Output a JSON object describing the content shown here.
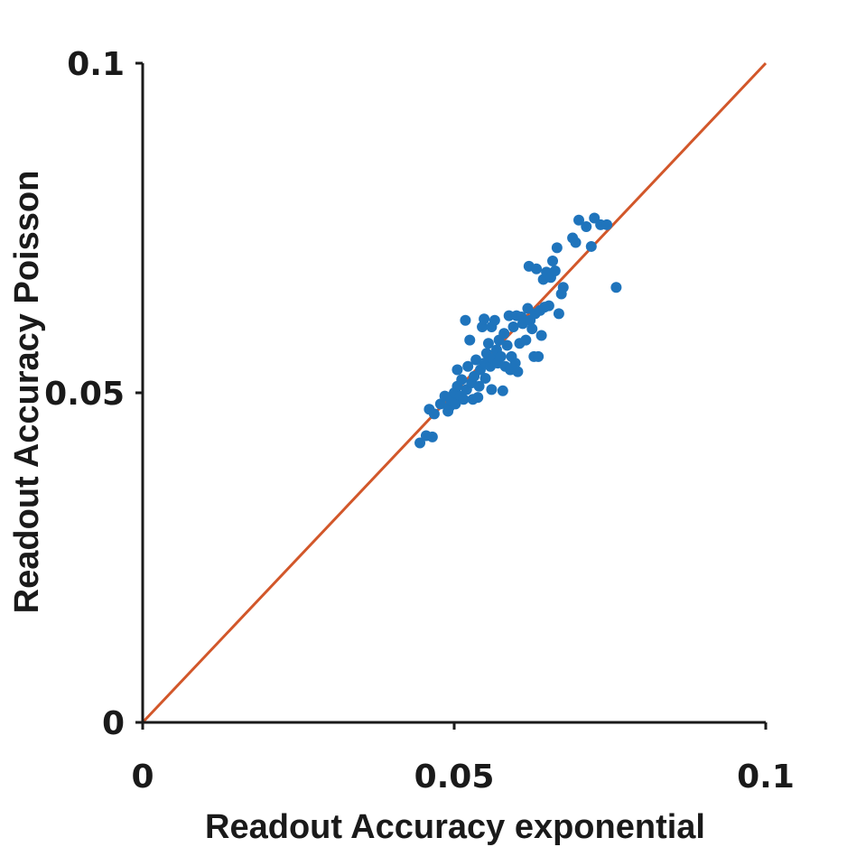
{
  "chart_data": {
    "type": "scatter",
    "xlabel": "Readout Accuracy exponential",
    "ylabel": "Readout Accuracy Poisson",
    "xlim": [
      0,
      0.1
    ],
    "ylim": [
      0,
      0.1
    ],
    "xticks": [
      {
        "value": 0,
        "label": "0"
      },
      {
        "value": 0.05,
        "label": "0.05"
      },
      {
        "value": 0.1,
        "label": "0.1"
      }
    ],
    "yticks": [
      {
        "value": 0,
        "label": "0"
      },
      {
        "value": 0.05,
        "label": "0.05"
      },
      {
        "value": 0.1,
        "label": "0.1"
      }
    ],
    "grid": false,
    "legend": "none",
    "reference_line": {
      "x": [
        0,
        0.1
      ],
      "y": [
        0,
        0.1
      ],
      "color": "#d2572a"
    },
    "point_color": "#1f74bc",
    "points": [
      {
        "x": 0.0445,
        "y": 0.0424
      },
      {
        "x": 0.0455,
        "y": 0.0435
      },
      {
        "x": 0.046,
        "y": 0.0475
      },
      {
        "x": 0.0465,
        "y": 0.0433
      },
      {
        "x": 0.0468,
        "y": 0.0468
      },
      {
        "x": 0.0478,
        "y": 0.0483
      },
      {
        "x": 0.0485,
        "y": 0.0495
      },
      {
        "x": 0.049,
        "y": 0.0472
      },
      {
        "x": 0.0492,
        "y": 0.0478
      },
      {
        "x": 0.0495,
        "y": 0.0488
      },
      {
        "x": 0.05,
        "y": 0.05
      },
      {
        "x": 0.0502,
        "y": 0.0483
      },
      {
        "x": 0.0505,
        "y": 0.051
      },
      {
        "x": 0.0505,
        "y": 0.0535
      },
      {
        "x": 0.051,
        "y": 0.0495
      },
      {
        "x": 0.0512,
        "y": 0.052
      },
      {
        "x": 0.0515,
        "y": 0.049
      },
      {
        "x": 0.0518,
        "y": 0.061
      },
      {
        "x": 0.052,
        "y": 0.0505
      },
      {
        "x": 0.0522,
        "y": 0.054
      },
      {
        "x": 0.0525,
        "y": 0.058
      },
      {
        "x": 0.0528,
        "y": 0.0515
      },
      {
        "x": 0.053,
        "y": 0.049
      },
      {
        "x": 0.0532,
        "y": 0.0525
      },
      {
        "x": 0.0535,
        "y": 0.055
      },
      {
        "x": 0.0538,
        "y": 0.0493
      },
      {
        "x": 0.054,
        "y": 0.051
      },
      {
        "x": 0.0542,
        "y": 0.0535
      },
      {
        "x": 0.0545,
        "y": 0.06
      },
      {
        "x": 0.0548,
        "y": 0.0545
      },
      {
        "x": 0.0548,
        "y": 0.0612
      },
      {
        "x": 0.055,
        "y": 0.0522
      },
      {
        "x": 0.0552,
        "y": 0.056
      },
      {
        "x": 0.0555,
        "y": 0.0575
      },
      {
        "x": 0.0558,
        "y": 0.054
      },
      {
        "x": 0.056,
        "y": 0.0505
      },
      {
        "x": 0.056,
        "y": 0.06
      },
      {
        "x": 0.0562,
        "y": 0.0552
      },
      {
        "x": 0.0565,
        "y": 0.061
      },
      {
        "x": 0.0568,
        "y": 0.0565
      },
      {
        "x": 0.057,
        "y": 0.0545
      },
      {
        "x": 0.0572,
        "y": 0.058
      },
      {
        "x": 0.0575,
        "y": 0.0555
      },
      {
        "x": 0.0578,
        "y": 0.0503
      },
      {
        "x": 0.058,
        "y": 0.059
      },
      {
        "x": 0.0582,
        "y": 0.054
      },
      {
        "x": 0.0585,
        "y": 0.0572
      },
      {
        "x": 0.0588,
        "y": 0.0617
      },
      {
        "x": 0.059,
        "y": 0.0535
      },
      {
        "x": 0.0592,
        "y": 0.0555
      },
      {
        "x": 0.0595,
        "y": 0.06
      },
      {
        "x": 0.0598,
        "y": 0.0545
      },
      {
        "x": 0.06,
        "y": 0.0617
      },
      {
        "x": 0.0602,
        "y": 0.0532
      },
      {
        "x": 0.0605,
        "y": 0.0575
      },
      {
        "x": 0.0608,
        "y": 0.0615
      },
      {
        "x": 0.061,
        "y": 0.0605
      },
      {
        "x": 0.0615,
        "y": 0.058
      },
      {
        "x": 0.0618,
        "y": 0.0628
      },
      {
        "x": 0.062,
        "y": 0.0692
      },
      {
        "x": 0.0622,
        "y": 0.061
      },
      {
        "x": 0.0625,
        "y": 0.0597
      },
      {
        "x": 0.0628,
        "y": 0.0555
      },
      {
        "x": 0.063,
        "y": 0.062
      },
      {
        "x": 0.0632,
        "y": 0.0688
      },
      {
        "x": 0.0635,
        "y": 0.0555
      },
      {
        "x": 0.0638,
        "y": 0.0625
      },
      {
        "x": 0.064,
        "y": 0.0587
      },
      {
        "x": 0.0643,
        "y": 0.0672
      },
      {
        "x": 0.0645,
        "y": 0.063
      },
      {
        "x": 0.0648,
        "y": 0.0683
      },
      {
        "x": 0.0652,
        "y": 0.0632
      },
      {
        "x": 0.0655,
        "y": 0.0675
      },
      {
        "x": 0.0658,
        "y": 0.07
      },
      {
        "x": 0.0662,
        "y": 0.0685
      },
      {
        "x": 0.0665,
        "y": 0.072
      },
      {
        "x": 0.0668,
        "y": 0.062
      },
      {
        "x": 0.0672,
        "y": 0.065
      },
      {
        "x": 0.0675,
        "y": 0.066
      },
      {
        "x": 0.069,
        "y": 0.0735
      },
      {
        "x": 0.0695,
        "y": 0.0728
      },
      {
        "x": 0.07,
        "y": 0.0762
      },
      {
        "x": 0.0712,
        "y": 0.0752
      },
      {
        "x": 0.072,
        "y": 0.0722
      },
      {
        "x": 0.0725,
        "y": 0.0765
      },
      {
        "x": 0.0735,
        "y": 0.0755
      },
      {
        "x": 0.0745,
        "y": 0.0755
      },
      {
        "x": 0.076,
        "y": 0.066
      }
    ]
  }
}
